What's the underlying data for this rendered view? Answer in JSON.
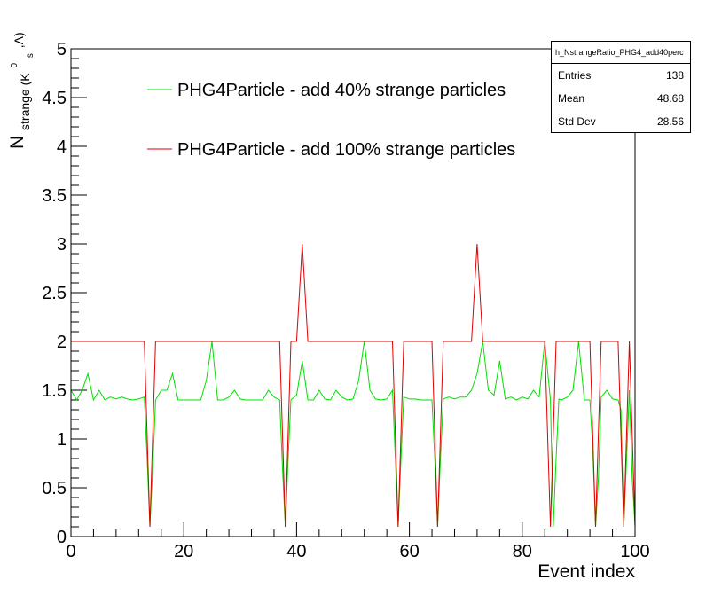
{
  "chart_data": {
    "type": "line",
    "xlabel": "Event index",
    "ylabel_main": "N",
    "ylabel_sub": "strange (K",
    "ylabel_sup0": "0",
    "ylabel_subs": "s",
    "ylabel_tail": ",Λ)",
    "xlim": [
      0,
      100
    ],
    "ylim": [
      0,
      5
    ],
    "x_ticks": [
      "0",
      "20",
      "40",
      "60",
      "80",
      "100"
    ],
    "y_ticks": [
      "0",
      "0.5",
      "1",
      "1.5",
      "2",
      "2.5",
      "3",
      "3.5",
      "4",
      "4.5",
      "5"
    ],
    "legend": [
      {
        "label": "PHG4Particle - add 40% strange particles",
        "color": "#00e000"
      },
      {
        "label": "PHG4Particle - add 100% strange particles",
        "color": "#e00000"
      }
    ],
    "series": [
      {
        "name": "PHG4Particle - add 40% strange particles",
        "color": "#00e000",
        "points": [
          [
            0,
            1.5
          ],
          [
            1,
            1.4
          ],
          [
            2,
            1.5
          ],
          [
            3,
            1.67
          ],
          [
            4,
            1.4
          ],
          [
            5,
            1.5
          ],
          [
            6,
            1.4
          ],
          [
            7,
            1.43
          ],
          [
            8,
            1.41
          ],
          [
            9,
            1.43
          ],
          [
            10,
            1.41
          ],
          [
            11,
            1.4
          ],
          [
            12,
            1.41
          ],
          [
            13,
            1.43
          ],
          [
            13.5,
            0.8
          ],
          [
            14,
            0.1
          ],
          [
            14.5,
            0.7
          ],
          [
            15,
            1.4
          ],
          [
            16,
            1.5
          ],
          [
            17,
            1.5
          ],
          [
            18,
            1.67
          ],
          [
            19,
            1.4
          ],
          [
            20,
            1.4
          ],
          [
            21,
            1.4
          ],
          [
            22,
            1.4
          ],
          [
            23,
            1.4
          ],
          [
            24,
            1.6
          ],
          [
            25,
            2.0
          ],
          [
            26,
            1.4
          ],
          [
            27,
            1.4
          ],
          [
            28,
            1.43
          ],
          [
            29,
            1.5
          ],
          [
            30,
            1.41
          ],
          [
            31,
            1.4
          ],
          [
            32,
            1.4
          ],
          [
            33,
            1.4
          ],
          [
            34,
            1.4
          ],
          [
            35,
            1.5
          ],
          [
            36,
            1.43
          ],
          [
            37,
            1.4
          ],
          [
            37.5,
            0.7
          ],
          [
            38,
            0.1
          ],
          [
            38.5,
            0.8
          ],
          [
            39,
            1.4
          ],
          [
            40,
            1.45
          ],
          [
            41,
            1.8
          ],
          [
            42,
            1.4
          ],
          [
            43,
            1.4
          ],
          [
            44,
            1.5
          ],
          [
            45,
            1.41
          ],
          [
            46,
            1.4
          ],
          [
            47,
            1.5
          ],
          [
            48,
            1.43
          ],
          [
            49,
            1.4
          ],
          [
            50,
            1.41
          ],
          [
            51,
            1.6
          ],
          [
            52,
            2.0
          ],
          [
            53,
            1.5
          ],
          [
            54,
            1.41
          ],
          [
            55,
            1.4
          ],
          [
            56,
            1.41
          ],
          [
            57,
            1.5
          ],
          [
            57.5,
            0.8
          ],
          [
            58,
            0.1
          ],
          [
            58.5,
            0.8
          ],
          [
            59,
            1.43
          ],
          [
            60,
            1.41
          ],
          [
            61,
            1.41
          ],
          [
            62,
            1.4
          ],
          [
            63,
            1.4
          ],
          [
            64,
            1.4
          ],
          [
            64.5,
            0.8
          ],
          [
            65,
            0.1
          ],
          [
            65.5,
            0.8
          ],
          [
            66,
            1.41
          ],
          [
            67,
            1.43
          ],
          [
            68,
            1.41
          ],
          [
            69,
            1.43
          ],
          [
            70,
            1.43
          ],
          [
            71,
            1.5
          ],
          [
            72,
            1.67
          ],
          [
            73,
            2.0
          ],
          [
            74,
            1.5
          ],
          [
            75,
            1.45
          ],
          [
            76,
            1.8
          ],
          [
            77,
            1.41
          ],
          [
            78,
            1.43
          ],
          [
            79,
            1.4
          ],
          [
            80,
            1.43
          ],
          [
            81,
            1.41
          ],
          [
            82,
            1.5
          ],
          [
            83,
            1.43
          ],
          [
            84,
            2.0
          ],
          [
            85,
            1.4
          ],
          [
            85.5,
            0.1
          ],
          [
            86,
            0.8
          ],
          [
            86.5,
            1.41
          ],
          [
            87,
            1.4
          ],
          [
            88,
            1.43
          ],
          [
            89,
            1.5
          ],
          [
            90,
            2.0
          ],
          [
            91,
            1.4
          ],
          [
            92,
            1.4
          ],
          [
            92.5,
            0.9
          ],
          [
            93,
            0.1
          ],
          [
            93.5,
            0.6
          ],
          [
            94,
            1.43
          ],
          [
            95,
            1.5
          ],
          [
            96,
            1.41
          ],
          [
            97,
            1.4
          ],
          [
            97.5,
            1.3
          ],
          [
            98,
            0.1
          ],
          [
            99,
            1.5
          ],
          [
            99.5,
            0.6
          ],
          [
            100,
            0.1
          ]
        ]
      },
      {
        "name": "PHG4Particle - add 100% strange particles",
        "color": "#e00000",
        "points": [
          [
            0,
            2.0
          ],
          [
            13,
            2.0
          ],
          [
            14,
            0.1
          ],
          [
            15,
            2.0
          ],
          [
            37,
            2.0
          ],
          [
            38,
            0.1
          ],
          [
            39,
            2.0
          ],
          [
            40,
            2.0
          ],
          [
            41,
            3.0
          ],
          [
            42,
            2.0
          ],
          [
            57,
            2.0
          ],
          [
            58,
            0.1
          ],
          [
            59,
            2.0
          ],
          [
            64,
            2.0
          ],
          [
            65,
            0.1
          ],
          [
            66,
            2.0
          ],
          [
            71,
            2.0
          ],
          [
            72,
            3.0
          ],
          [
            73,
            2.0
          ],
          [
            84,
            2.0
          ],
          [
            85,
            0.1
          ],
          [
            86,
            2.0
          ],
          [
            92,
            2.0
          ],
          [
            93,
            0.1
          ],
          [
            94,
            2.0
          ],
          [
            97,
            2.0
          ],
          [
            98,
            0.1
          ],
          [
            99,
            2.0
          ],
          [
            100,
            0.1
          ]
        ]
      }
    ],
    "stats": {
      "title": "h_NstrangeRatio_PHG4_add40perc",
      "rows": [
        {
          "label": "Entries",
          "value": "138"
        },
        {
          "label": "Mean",
          "value": "48.68"
        },
        {
          "label": "Std Dev",
          "value": "28.56"
        }
      ]
    }
  }
}
